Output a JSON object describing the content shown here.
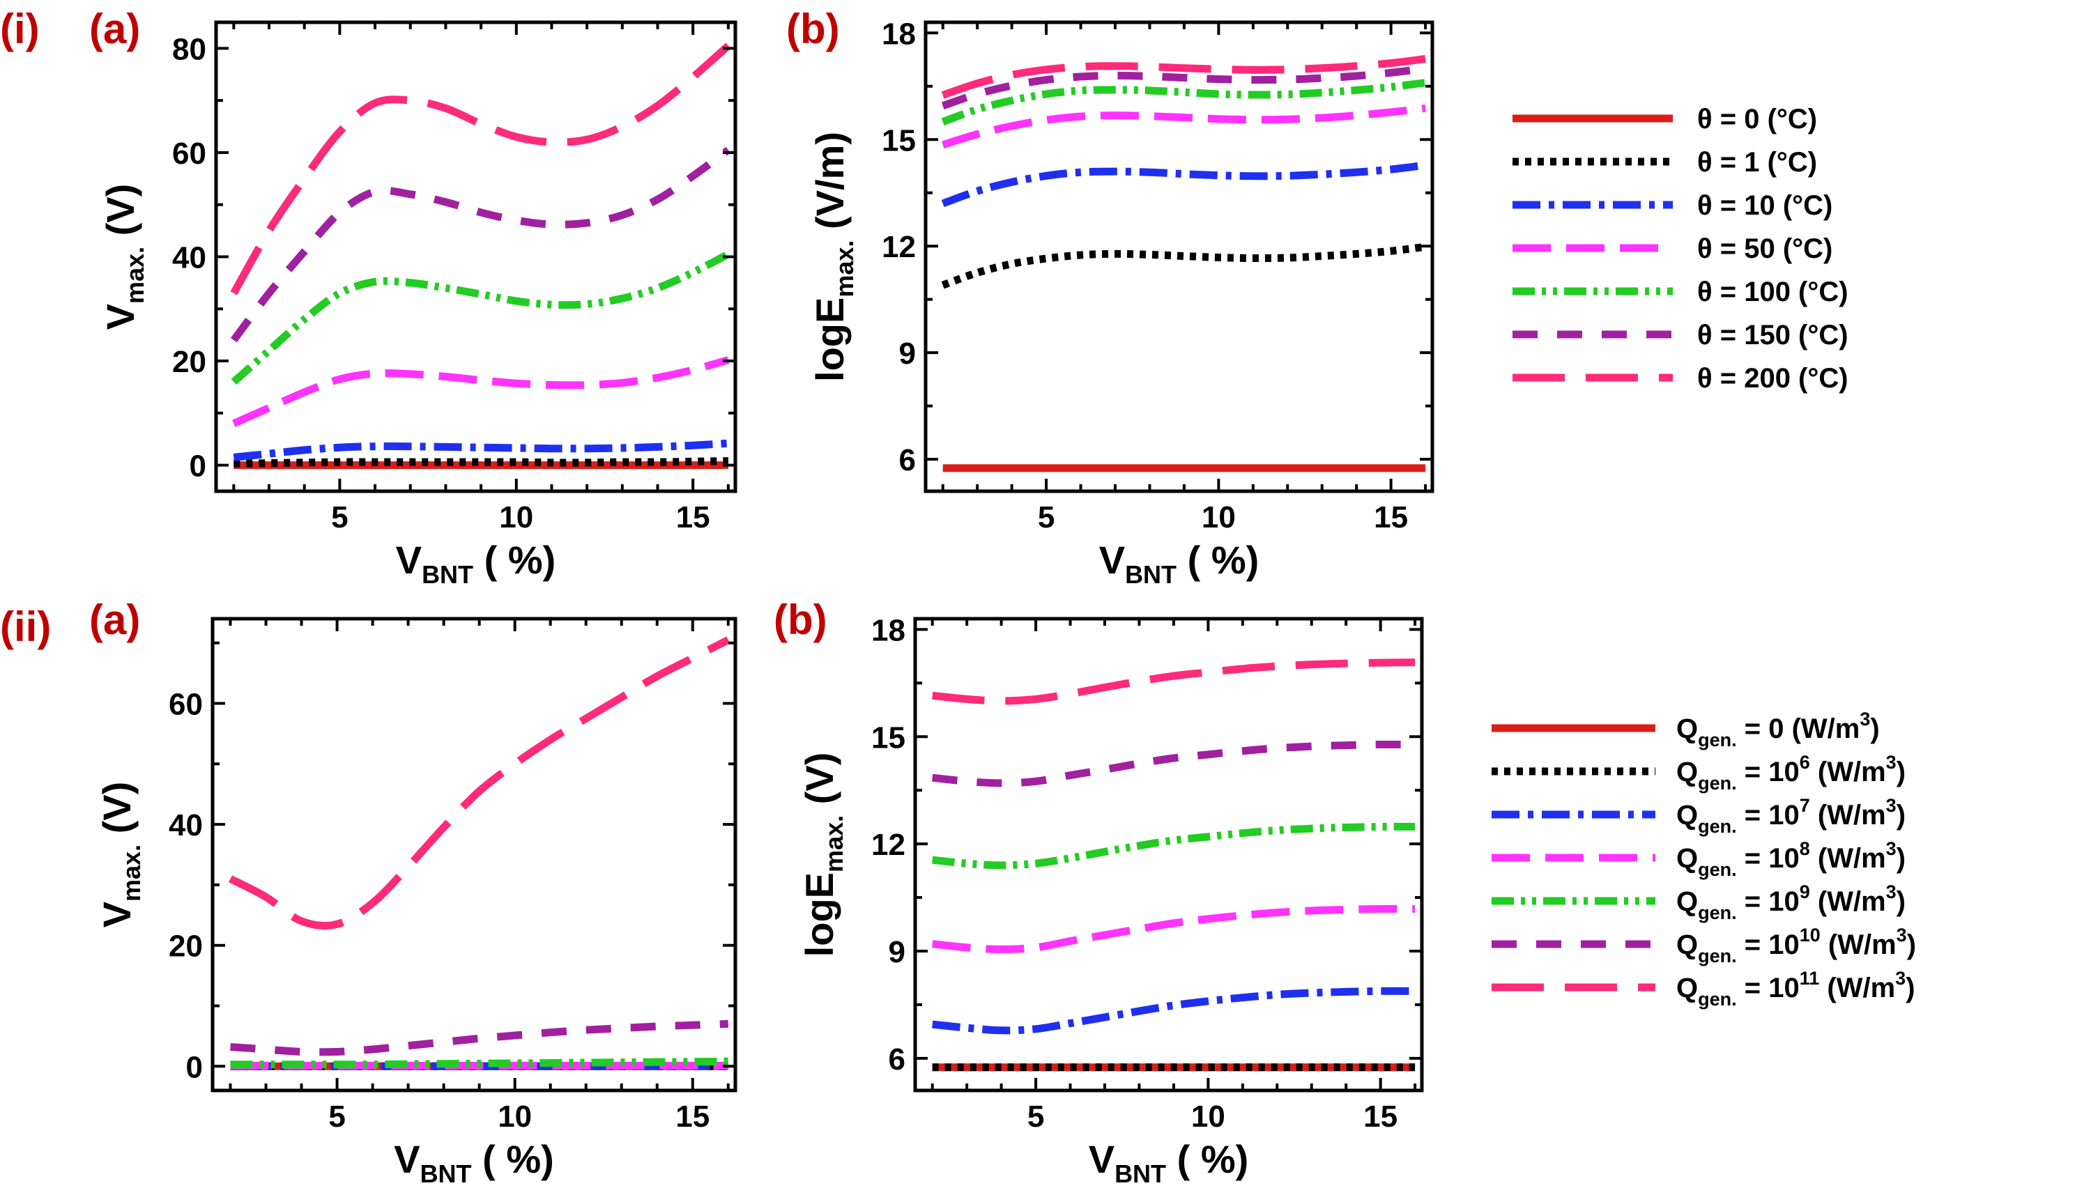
{
  "figure_labels": {
    "row1": "(i)",
    "row2": "(ii)",
    "a": "(a)",
    "b": "(b)"
  },
  "legends": {
    "theta": {
      "symbol": "θ",
      "entries": [
        {
          "text": "θ = 0 (°C)",
          "color": "#d91e18",
          "style": "solid"
        },
        {
          "text": "θ = 1 (°C)",
          "color": "#000000",
          "style": "dot"
        },
        {
          "text": "θ = 10 (°C)",
          "color": "#1f2ff0",
          "style": "dashdot"
        },
        {
          "text": "θ = 50 (°C)",
          "color": "#ff33ff",
          "style": "longdash"
        },
        {
          "text": "θ = 100 (°C)",
          "color": "#22cc22",
          "style": "dashdotdot"
        },
        {
          "text": "θ = 150 (°C)",
          "color": "#a020a0",
          "style": "dash"
        },
        {
          "text": "θ = 200 (°C)",
          "color": "#ff2a7a",
          "style": "longdash2"
        }
      ]
    },
    "qgen": {
      "prefix": "Q",
      "subscript": "gen.",
      "unit_open": "(W/m",
      "unit_sup": "3",
      "unit_close": ")",
      "entries": [
        {
          "value": "0",
          "exp": "",
          "color": "#d91e18",
          "style": "solid"
        },
        {
          "value": "10",
          "exp": "6",
          "color": "#000000",
          "style": "dot"
        },
        {
          "value": "10",
          "exp": "7",
          "color": "#1f2ff0",
          "style": "dashdot"
        },
        {
          "value": "10",
          "exp": "8",
          "color": "#ff33ff",
          "style": "longdash"
        },
        {
          "value": "10",
          "exp": "9",
          "color": "#22cc22",
          "style": "dashdotdot"
        },
        {
          "value": "10",
          "exp": "10",
          "color": "#a020a0",
          "style": "dash"
        },
        {
          "value": "10",
          "exp": "11",
          "color": "#ff2a7a",
          "style": "longdash2"
        }
      ]
    }
  },
  "chart_data": [
    {
      "id": "i-a",
      "type": "line",
      "xlabel": {
        "main": "V",
        "sub": "BNT",
        "rest": " ( %)"
      },
      "ylabel": {
        "main": "V",
        "sub": "max.",
        "rest": " (V)"
      },
      "xlim": [
        1.5,
        16.2
      ],
      "ylim": [
        -5,
        85
      ],
      "xticks": [
        5,
        10,
        15
      ],
      "yticks": [
        0,
        20,
        40,
        60,
        80
      ],
      "x": [
        2,
        3,
        4,
        5,
        6,
        7,
        8,
        9,
        10,
        11,
        12,
        13,
        14,
        15,
        16
      ],
      "series": [
        {
          "name": "θ = 0 (°C)",
          "values": [
            0,
            0,
            0,
            0,
            0,
            0,
            0,
            0,
            0,
            0,
            0,
            0,
            0,
            0,
            0
          ]
        },
        {
          "name": "θ = 1 (°C)",
          "values": [
            0.3,
            0.4,
            0.5,
            0.6,
            0.6,
            0.6,
            0.6,
            0.6,
            0.6,
            0.5,
            0.5,
            0.6,
            0.6,
            0.7,
            0.8
          ]
        },
        {
          "name": "θ = 10 (°C)",
          "values": [
            1.5,
            2.2,
            2.9,
            3.4,
            3.6,
            3.6,
            3.5,
            3.4,
            3.3,
            3.2,
            3.2,
            3.3,
            3.5,
            3.8,
            4.2
          ]
        },
        {
          "name": "θ = 50 (°C)",
          "values": [
            8,
            11,
            14,
            16.5,
            17.6,
            17.5,
            17,
            16.3,
            15.7,
            15.4,
            15.4,
            15.8,
            16.8,
            18.3,
            20.2
          ]
        },
        {
          "name": "θ = 100 (°C)",
          "values": [
            16,
            22,
            28,
            33,
            35.2,
            35,
            34,
            32.8,
            31.5,
            30.8,
            30.9,
            32,
            34,
            37,
            40.5
          ]
        },
        {
          "name": "θ = 150 (°C)",
          "values": [
            24,
            33,
            41,
            48.5,
            52.5,
            52,
            50.5,
            48.5,
            47,
            46.2,
            46.5,
            48,
            51,
            55.5,
            60.5
          ]
        },
        {
          "name": "θ = 200 (°C)",
          "values": [
            33,
            45,
            55,
            64,
            69.5,
            70,
            68.5,
            65.5,
            63,
            62,
            62.5,
            65,
            69,
            74.5,
            80.5
          ]
        }
      ]
    },
    {
      "id": "i-b",
      "type": "line",
      "xlabel": {
        "main": "V",
        "sub": "BNT",
        "rest": " ( %)"
      },
      "ylabel": {
        "main": "logE",
        "sub": "max.",
        "rest": " (V/m)"
      },
      "xlim": [
        1.5,
        16.2
      ],
      "ylim": [
        5.1,
        18.3
      ],
      "xticks": [
        5,
        10,
        15
      ],
      "yticks": [
        6,
        9,
        12,
        15,
        18
      ],
      "x": [
        2,
        3,
        4,
        5,
        6,
        7,
        8,
        9,
        10,
        11,
        12,
        13,
        14,
        15,
        16
      ],
      "series": [
        {
          "name": "θ = 0 (°C)",
          "values": [
            5.75,
            5.75,
            5.75,
            5.75,
            5.75,
            5.75,
            5.75,
            5.75,
            5.75,
            5.75,
            5.75,
            5.75,
            5.75,
            5.75,
            5.75
          ]
        },
        {
          "name": "θ = 1 (°C)",
          "values": [
            10.9,
            11.25,
            11.5,
            11.65,
            11.75,
            11.78,
            11.76,
            11.72,
            11.68,
            11.66,
            11.67,
            11.72,
            11.78,
            11.86,
            11.98
          ]
        },
        {
          "name": "θ = 10 (°C)",
          "values": [
            13.2,
            13.55,
            13.8,
            13.98,
            14.08,
            14.1,
            14.08,
            14.03,
            13.99,
            13.97,
            13.98,
            14.02,
            14.08,
            14.16,
            14.28
          ]
        },
        {
          "name": "θ = 50 (°C)",
          "values": [
            14.85,
            15.15,
            15.38,
            15.55,
            15.65,
            15.68,
            15.66,
            15.62,
            15.58,
            15.56,
            15.57,
            15.61,
            15.68,
            15.77,
            15.88
          ]
        },
        {
          "name": "θ = 100 (°C)",
          "values": [
            15.5,
            15.85,
            16.1,
            16.28,
            16.38,
            16.4,
            16.38,
            16.33,
            16.28,
            16.26,
            16.27,
            16.32,
            16.39,
            16.48,
            16.6
          ]
        },
        {
          "name": "θ = 150 (°C)",
          "values": [
            15.95,
            16.28,
            16.52,
            16.68,
            16.77,
            16.8,
            16.78,
            16.74,
            16.7,
            16.68,
            16.69,
            16.73,
            16.79,
            16.88,
            17.0
          ]
        },
        {
          "name": "θ = 200 (°C)",
          "values": [
            16.25,
            16.58,
            16.82,
            16.97,
            17.05,
            17.07,
            17.05,
            17.01,
            16.98,
            16.96,
            16.97,
            17.01,
            17.07,
            17.15,
            17.27
          ]
        }
      ]
    },
    {
      "id": "ii-a",
      "type": "line",
      "xlabel": {
        "main": "V",
        "sub": "BNT",
        "rest": " ( %)"
      },
      "ylabel": {
        "main": "V",
        "sub": "max.",
        "rest": " (V)"
      },
      "xlim": [
        1.5,
        16.2
      ],
      "ylim": [
        -4,
        74
      ],
      "xticks": [
        5,
        10,
        15
      ],
      "yticks": [
        0,
        20,
        40,
        60
      ],
      "x": [
        2,
        3,
        4,
        5,
        6,
        7,
        8,
        9,
        10,
        11,
        12,
        13,
        14,
        15,
        16
      ],
      "series": [
        {
          "name": "0",
          "values": [
            0,
            0,
            0,
            0,
            0,
            0,
            0,
            0,
            0,
            0,
            0,
            0,
            0,
            0,
            0
          ]
        },
        {
          "name": "6",
          "values": [
            0,
            0,
            0,
            0,
            0,
            0,
            0,
            0,
            0,
            0,
            0,
            0,
            0,
            0,
            0
          ]
        },
        {
          "name": "7",
          "values": [
            0,
            0,
            0,
            0,
            0,
            0,
            0,
            0,
            0,
            0,
            0,
            0,
            0,
            0,
            0
          ]
        },
        {
          "name": "8",
          "values": [
            0.1,
            0.1,
            0.1,
            0.1,
            0.1,
            0.1,
            0.1,
            0.1,
            0.1,
            0.1,
            0.1,
            0.1,
            0.1,
            0.1,
            0.1
          ]
        },
        {
          "name": "9",
          "values": [
            0.3,
            0.3,
            0.3,
            0.3,
            0.3,
            0.35,
            0.4,
            0.45,
            0.5,
            0.55,
            0.6,
            0.65,
            0.7,
            0.75,
            0.8
          ]
        },
        {
          "name": "10",
          "values": [
            3.2,
            2.8,
            2.4,
            2.4,
            2.8,
            3.4,
            4.0,
            4.6,
            5.1,
            5.6,
            6.0,
            6.3,
            6.6,
            6.8,
            7.0
          ]
        },
        {
          "name": "11",
          "values": [
            31,
            28,
            24,
            23.5,
            27,
            33,
            39.5,
            45.5,
            50,
            54,
            57.5,
            61,
            64.5,
            67.5,
            70.5
          ]
        }
      ]
    },
    {
      "id": "ii-b",
      "type": "line",
      "xlabel": {
        "main": "V",
        "sub": "BNT",
        "rest": " ( %)"
      },
      "ylabel": {
        "main": "logE",
        "sub": "max.",
        "rest": " (V)"
      },
      "xlim": [
        1.5,
        16.2
      ],
      "ylim": [
        5.1,
        18.3
      ],
      "xticks": [
        5,
        10,
        15
      ],
      "yticks": [
        6,
        9,
        12,
        15,
        18
      ],
      "x": [
        2,
        3,
        4,
        5,
        6,
        7,
        8,
        9,
        10,
        11,
        12,
        13,
        14,
        15,
        16
      ],
      "series": [
        {
          "name": "0",
          "values": [
            5.75,
            5.75,
            5.75,
            5.75,
            5.75,
            5.75,
            5.75,
            5.75,
            5.75,
            5.75,
            5.75,
            5.75,
            5.75,
            5.75,
            5.75
          ]
        },
        {
          "name": "6",
          "values": [
            5.75,
            5.75,
            5.75,
            5.75,
            5.75,
            5.75,
            5.75,
            5.75,
            5.75,
            5.75,
            5.75,
            5.75,
            5.75,
            5.75,
            5.75
          ]
        },
        {
          "name": "7",
          "values": [
            6.95,
            6.85,
            6.78,
            6.82,
            6.98,
            7.15,
            7.32,
            7.48,
            7.6,
            7.7,
            7.78,
            7.83,
            7.86,
            7.88,
            7.88
          ]
        },
        {
          "name": "8",
          "values": [
            9.2,
            9.1,
            9.05,
            9.1,
            9.28,
            9.45,
            9.62,
            9.78,
            9.9,
            10.0,
            10.08,
            10.13,
            10.16,
            10.18,
            10.18
          ]
        },
        {
          "name": "9",
          "values": [
            11.55,
            11.45,
            11.4,
            11.45,
            11.6,
            11.78,
            11.95,
            12.1,
            12.2,
            12.3,
            12.38,
            12.43,
            12.46,
            12.48,
            12.48
          ]
        },
        {
          "name": "10",
          "values": [
            13.85,
            13.75,
            13.7,
            13.75,
            13.92,
            14.08,
            14.25,
            14.4,
            14.5,
            14.6,
            14.68,
            14.73,
            14.76,
            14.78,
            14.78
          ]
        },
        {
          "name": "11",
          "values": [
            16.15,
            16.05,
            16.0,
            16.05,
            16.2,
            16.38,
            16.55,
            16.7,
            16.8,
            16.9,
            16.97,
            17.02,
            17.05,
            17.07,
            17.08
          ]
        }
      ]
    }
  ]
}
